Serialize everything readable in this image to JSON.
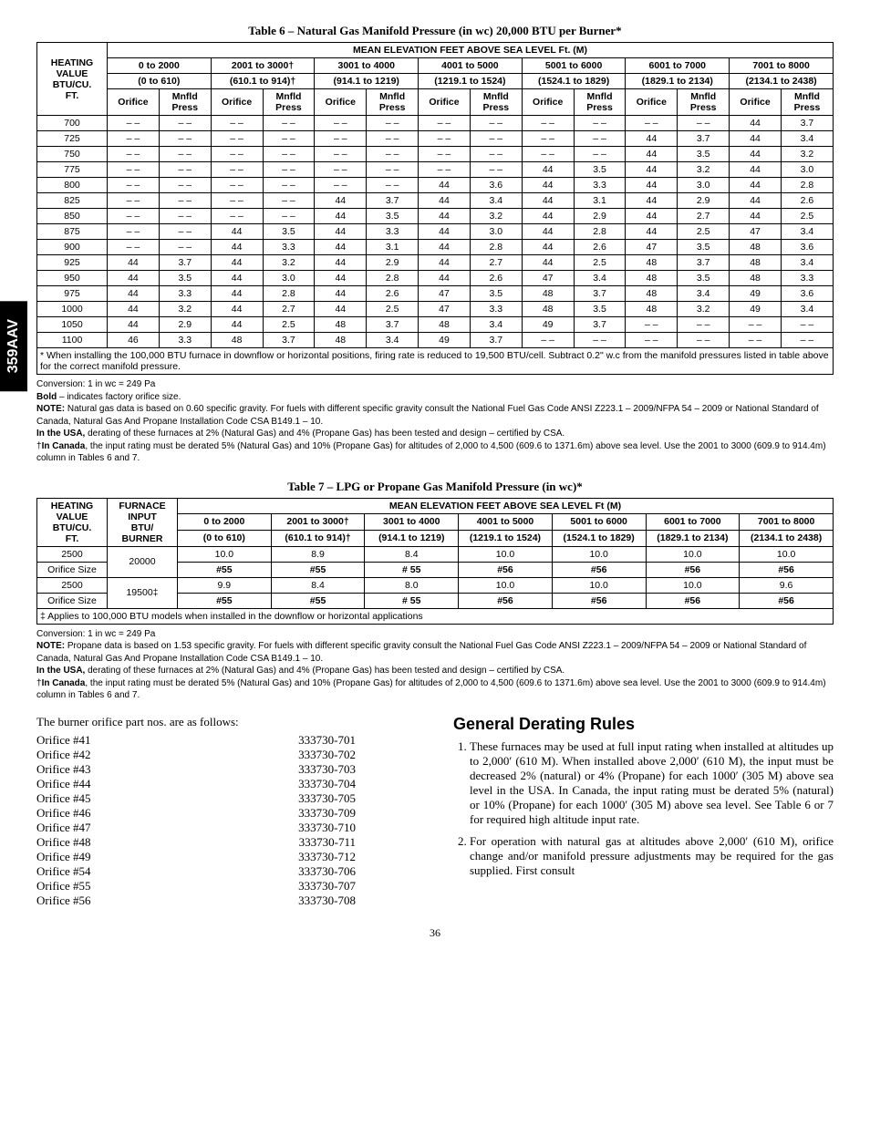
{
  "sideTab": "359AAV",
  "table6": {
    "title": "Table 6 – Natural Gas Manifold Pressure (in wc) 20,000 BTU per Burner*",
    "meanHeader": "MEAN ELEVATION FEET ABOVE SEA LEVEL Ft.  (M)",
    "heatingHeader": "HEATING VALUE BTU/CU. FT.",
    "elevationRanges": [
      {
        "ft": "0 to 2000",
        "m": "(0 to 610)"
      },
      {
        "ft": "2001 to 3000†",
        "m": "(610.1 to 914)†"
      },
      {
        "ft": "3001 to 4000",
        "m": "(914.1 to 1219)"
      },
      {
        "ft": "4001 to 5000",
        "m": "(1219.1 to 1524)"
      },
      {
        "ft": "5001 to 6000",
        "m": "(1524.1 to 1829)"
      },
      {
        "ft": "6001 to 7000",
        "m": "(1829.1 to 2134)"
      },
      {
        "ft": "7001 to 8000",
        "m": "(2134.1 to 2438)"
      }
    ],
    "subHeaders": [
      "Orifice",
      "Mnfld Press"
    ],
    "rows": [
      {
        "hv": "700",
        "c": [
          [
            "– –",
            "– –"
          ],
          [
            "– –",
            "– –"
          ],
          [
            "– –",
            "– –"
          ],
          [
            "– –",
            "– –"
          ],
          [
            "– –",
            "– –"
          ],
          [
            "– –",
            "– –"
          ],
          [
            "44",
            "3.7"
          ]
        ]
      },
      {
        "hv": "725",
        "c": [
          [
            "– –",
            "– –"
          ],
          [
            "– –",
            "– –"
          ],
          [
            "– –",
            "– –"
          ],
          [
            "– –",
            "– –"
          ],
          [
            "– –",
            "– –"
          ],
          [
            "44",
            "3.7"
          ],
          [
            "44",
            "3.4"
          ]
        ]
      },
      {
        "hv": "750",
        "c": [
          [
            "– –",
            "– –"
          ],
          [
            "– –",
            "– –"
          ],
          [
            "– –",
            "– –"
          ],
          [
            "– –",
            "– –"
          ],
          [
            "– –",
            "– –"
          ],
          [
            "44",
            "3.5"
          ],
          [
            "44",
            "3.2"
          ]
        ]
      },
      {
        "hv": "775",
        "c": [
          [
            "– –",
            "– –"
          ],
          [
            "– –",
            "– –"
          ],
          [
            "– –",
            "– –"
          ],
          [
            "– –",
            "– –"
          ],
          [
            "44",
            "3.5"
          ],
          [
            "44",
            "3.2"
          ],
          [
            "44",
            "3.0"
          ]
        ]
      },
      {
        "hv": "800",
        "c": [
          [
            "– –",
            "– –"
          ],
          [
            "– –",
            "– –"
          ],
          [
            "– –",
            "– –"
          ],
          [
            "44",
            "3.6"
          ],
          [
            "44",
            "3.3"
          ],
          [
            "44",
            "3.0"
          ],
          [
            "44",
            "2.8"
          ]
        ]
      },
      {
        "hv": "825",
        "c": [
          [
            "– –",
            "– –"
          ],
          [
            "– –",
            "– –"
          ],
          [
            "44",
            "3.7"
          ],
          [
            "44",
            "3.4"
          ],
          [
            "44",
            "3.1"
          ],
          [
            "44",
            "2.9"
          ],
          [
            "44",
            "2.6"
          ]
        ]
      },
      {
        "hv": "850",
        "c": [
          [
            "– –",
            "– –"
          ],
          [
            "– –",
            "– –"
          ],
          [
            "44",
            "3.5"
          ],
          [
            "44",
            "3.2"
          ],
          [
            "44",
            "2.9"
          ],
          [
            "44",
            "2.7"
          ],
          [
            "44",
            "2.5"
          ]
        ]
      },
      {
        "hv": "875",
        "c": [
          [
            "– –",
            "– –"
          ],
          [
            "44",
            "3.5"
          ],
          [
            "44",
            "3.3"
          ],
          [
            "44",
            "3.0"
          ],
          [
            "44",
            "2.8"
          ],
          [
            "44",
            "2.5"
          ],
          [
            "47",
            "3.4"
          ]
        ]
      },
      {
        "hv": "900",
        "c": [
          [
            "– –",
            "– –"
          ],
          [
            "44",
            "3.3"
          ],
          [
            "44",
            "3.1"
          ],
          [
            "44",
            "2.8"
          ],
          [
            "44",
            "2.6"
          ],
          [
            "47",
            "3.5"
          ],
          [
            "48",
            "3.6"
          ]
        ]
      },
      {
        "hv": "925",
        "c": [
          [
            "44",
            "3.7"
          ],
          [
            "44",
            "3.2"
          ],
          [
            "44",
            "2.9"
          ],
          [
            "44",
            "2.7"
          ],
          [
            "44",
            "2.5"
          ],
          [
            "48",
            "3.7"
          ],
          [
            "48",
            "3.4"
          ]
        ]
      },
      {
        "hv": "950",
        "c": [
          [
            "44",
            "3.5"
          ],
          [
            "44",
            "3.0"
          ],
          [
            "44",
            "2.8"
          ],
          [
            "44",
            "2.6"
          ],
          [
            "47",
            "3.4"
          ],
          [
            "48",
            "3.5"
          ],
          [
            "48",
            "3.3"
          ]
        ]
      },
      {
        "hv": "975",
        "c": [
          [
            "44",
            "3.3"
          ],
          [
            "44",
            "2.8"
          ],
          [
            "44",
            "2.6"
          ],
          [
            "47",
            "3.5"
          ],
          [
            "48",
            "3.7"
          ],
          [
            "48",
            "3.4"
          ],
          [
            "49",
            "3.6"
          ]
        ]
      },
      {
        "hv": "1000",
        "c": [
          [
            "44",
            "3.2"
          ],
          [
            "44",
            "2.7"
          ],
          [
            "44",
            "2.5"
          ],
          [
            "47",
            "3.3"
          ],
          [
            "48",
            "3.5"
          ],
          [
            "48",
            "3.2"
          ],
          [
            "49",
            "3.4"
          ]
        ]
      },
      {
        "hv": "1050",
        "c": [
          [
            "44",
            "2.9"
          ],
          [
            "44",
            "2.5"
          ],
          [
            "48",
            "3.7"
          ],
          [
            "48",
            "3.4"
          ],
          [
            "49",
            "3.7"
          ],
          [
            "– –",
            "– –"
          ],
          [
            "– –",
            "– –"
          ]
        ]
      },
      {
        "hv": "1100",
        "c": [
          [
            "46",
            "3.3"
          ],
          [
            "48",
            "3.7"
          ],
          [
            "48",
            "3.4"
          ],
          [
            "49",
            "3.7"
          ],
          [
            "– –",
            "– –"
          ],
          [
            "– –",
            "– –"
          ],
          [
            "– –",
            "– –"
          ]
        ]
      }
    ],
    "footnote": "* When installing the 100,000 BTU furnace in downflow or horizontal positions, firing rate is reduced to 19,500 BTU/cell. Subtract 0.2\" w.c from the manifold pressures listed in table above for the correct manifold pressure."
  },
  "notes6": [
    "Conversion: 1 in wc = 249 Pa",
    "<b>Bold</b> – indicates factory orifice size.",
    "<b>NOTE:</b> Natural gas data is based on 0.60 specific gravity.  For fuels with different specific gravity consult the National Fuel Gas Code ANSI Z223.1 – 2009/NFPA 54 – 2009 or National Standard of Canada, Natural Gas And Propane Installation Code CSA B149.1 – 10.",
    "<b>In the USA,</b> derating of these furnaces at 2% (Natural Gas) and 4% (Propane Gas) has been tested and design – certified by CSA.",
    "†<b>In Canada</b>, the input rating must be derated 5% (Natural Gas) and 10% (Propane Gas) for altitudes of 2,000 to 4,500 (609.6 to 1371.6m) above sea level. Use the 2001 to 3000  (609.9 to 914.4m) column in Tables 6 and 7."
  ],
  "table7": {
    "title": "Table 7 – LPG or Propane Gas Manifold Pressure (in wc)*",
    "h1": "HEATING VALUE BTU/CU. FT.",
    "h2": "FURNACE INPUT BTU/ BURNER",
    "meanHeader": "MEAN ELEVATION FEET ABOVE SEA LEVEL Ft  (M)",
    "cols": [
      {
        "ft": "0 to 2000",
        "m": "(0 to 610)"
      },
      {
        "ft": "2001 to 3000†",
        "m": "(610.1 to 914)†"
      },
      {
        "ft": "3001 to 4000",
        "m": "(914.1 to 1219)"
      },
      {
        "ft": "4001 to 5000",
        "m": "(1219.1 to 1524)"
      },
      {
        "ft": "5001 to 6000",
        "m": "(1524.1 to 1829)"
      },
      {
        "ft": "6001 to 7000",
        "m": "(1829.1 to 2134)"
      },
      {
        "ft": "7001 to 8000",
        "m": "(2134.1 to 2438)"
      }
    ],
    "groups": [
      {
        "input": "20000",
        "rows": [
          {
            "label": "2500",
            "v": [
              "10.0",
              "8.9",
              "8.4",
              "10.0",
              "10.0",
              "10.0",
              "10.0"
            ]
          },
          {
            "label": "Orifice Size",
            "v": [
              "#55",
              "#55",
              "# 55",
              "#56",
              "#56",
              "#56",
              "#56"
            ],
            "bold": true
          }
        ]
      },
      {
        "input": "19500‡",
        "rows": [
          {
            "label": "2500",
            "v": [
              "9.9",
              "8.4",
              "8.0",
              "10.0",
              "10.0",
              "10.0",
              "9.6"
            ]
          },
          {
            "label": "Orifice Size",
            "v": [
              "#55",
              "#55",
              "# 55",
              "#56",
              "#56",
              "#56",
              "#56"
            ],
            "bold": true
          }
        ]
      }
    ],
    "footnote": "‡ Applies to 100,000 BTU models when installed in the downflow or horizontal applications"
  },
  "notes7": [
    "Conversion: 1 in wc = 249 Pa",
    "<b>NOTE:</b> Propane data is based on 1.53 specific gravity.  For fuels with different specific gravity consult the National Fuel Gas Code ANSI Z223.1 – 2009/NFPA 54 – 2009 or National Standard of Canada, Natural Gas And Propane Installation Code CSA B149.1 – 10.",
    "<b>In the USA,</b> derating of these furnaces at 2% (Natural Gas) and 4% (Propane Gas) has been tested and design – certified by CSA.",
    "†<b>In Canada</b>, the input rating must be derated 5% (Natural Gas) and 10% (Propane Gas) for altitudes of 2,000 to 4,500 (609.6 to 1371.6m) above sea level. Use the 2001 to 3000  (609.9 to 914.4m) column in Tables 6 and 7."
  ],
  "orificeIntro": "The burner orifice part nos. are as follows:",
  "orifices": [
    [
      "Orifice #41",
      "333730-701"
    ],
    [
      "Orifice #42",
      "333730-702"
    ],
    [
      "Orifice #43",
      "333730-703"
    ],
    [
      "Orifice #44",
      "333730-704"
    ],
    [
      "Orifice #45",
      "333730-705"
    ],
    [
      "Orifice #46",
      "333730-709"
    ],
    [
      "Orifice #47",
      "333730-710"
    ],
    [
      "Orifice #48",
      "333730-711"
    ],
    [
      "Orifice #49",
      "333730-712"
    ],
    [
      "Orifice #54",
      "333730-706"
    ],
    [
      "Orifice #55",
      "333730-707"
    ],
    [
      "Orifice #56",
      "333730-708"
    ]
  ],
  "rulesTitle": "General Derating Rules",
  "rules": [
    "These furnaces may be used at full input rating when installed at altitudes up to 2,000′ (610 M). When installed above 2,000′ (610 M), the input must be decreased 2% (natural) or 4% (Propane) for each 1000′ (305 M) above sea level in the USA. In Canada, the input rating must be derated 5% (natural) or 10% (Propane) for each 1000′ (305 M) above sea level. See Table  6 or 7  for required high altitude input rate.",
    "For operation with natural gas at altitudes above 2,000′ (610 M), orifice change and/or manifold pressure adjustments may be required for the gas supplied. First consult"
  ],
  "pageNumber": "36"
}
